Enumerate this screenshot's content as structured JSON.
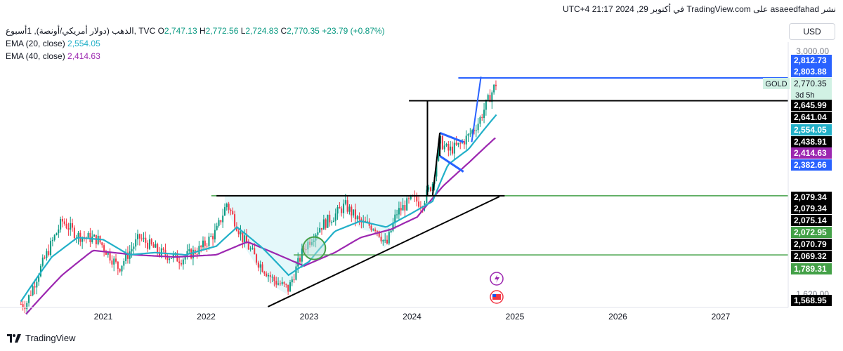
{
  "header": {
    "title_line": "نشر asaeedfahad على TradingView.com في أكتوبر 29, 2024 21:17 UTC+4"
  },
  "legend": {
    "symbol": "الذهب (دولار أمريكي/أونصة), 1أسبوع, TVC",
    "open_label": "O",
    "open": "2,747.13",
    "high_label": "H",
    "high": "2,772.56",
    "low_label": "L",
    "low": "2,724.83",
    "close_label": "C",
    "close": "2,770.35",
    "change": "+23.79 (+0.87%)",
    "ema20_label": "EMA (20, close)",
    "ema20": "2,554.05",
    "ema40_label": "EMA (40, close)",
    "ema40": "2,414.63"
  },
  "currency_button": "USD",
  "footer": {
    "brand": "TradingView"
  },
  "chart_data": {
    "type": "candlestick",
    "timeframe": "1W",
    "x_ticks": [
      "2021",
      "2022",
      "2023",
      "2024",
      "2025",
      "2026",
      "2027"
    ],
    "y_ticks": [
      "3,000.00",
      "1,620.00"
    ],
    "price_labels": [
      {
        "text": "2,812.73",
        "color": "#2962ff"
      },
      {
        "text": "2,803.88",
        "color": "#2962ff"
      },
      {
        "text": "2,770.35",
        "color": "#d1f1e4",
        "symbol": "GOLD",
        "countdown": "3d 5h"
      },
      {
        "text": "2,645.99",
        "color": "#000000"
      },
      {
        "text": "2,641.04",
        "color": "#000000"
      },
      {
        "text": "2,554.05",
        "color": "#22b0c8"
      },
      {
        "text": "2,438.91",
        "color": "#000000"
      },
      {
        "text": "2,414.63",
        "color": "#9c27b0"
      },
      {
        "text": "2,382.66",
        "color": "#2962ff"
      },
      {
        "text": "2,079.34",
        "color": "#000000"
      },
      {
        "text": "2,079.34",
        "color": "#000000"
      },
      {
        "text": "2,075.14",
        "color": "#000000"
      },
      {
        "text": "2,072.95",
        "color": "#43a047"
      },
      {
        "text": "2,070.79",
        "color": "#000000"
      },
      {
        "text": "2,069.32",
        "color": "#000000"
      },
      {
        "text": "1,789.31",
        "color": "#43a047"
      },
      {
        "text": "1,568.95",
        "color": "#000000"
      }
    ],
    "price_path": [
      [
        2020.25,
        1580
      ],
      [
        2020.4,
        1740
      ],
      [
        2020.6,
        1950
      ],
      [
        2020.75,
        1880
      ],
      [
        2020.95,
        1860
      ],
      [
        2021.15,
        1730
      ],
      [
        2021.35,
        1870
      ],
      [
        2021.55,
        1800
      ],
      [
        2021.75,
        1770
      ],
      [
        2021.95,
        1820
      ],
      [
        2022.1,
        1900
      ],
      [
        2022.2,
        2040
      ],
      [
        2022.35,
        1870
      ],
      [
        2022.5,
        1760
      ],
      [
        2022.65,
        1680
      ],
      [
        2022.8,
        1640
      ],
      [
        2022.95,
        1820
      ],
      [
        2023.1,
        1920
      ],
      [
        2023.25,
        1980
      ],
      [
        2023.35,
        2030
      ],
      [
        2023.5,
        1940
      ],
      [
        2023.65,
        1920
      ],
      [
        2023.75,
        1830
      ],
      [
        2023.85,
        1990
      ],
      [
        2024.0,
        2060
      ],
      [
        2024.1,
        2040
      ],
      [
        2024.2,
        2150
      ],
      [
        2024.27,
        2390
      ],
      [
        2024.35,
        2330
      ],
      [
        2024.45,
        2360
      ],
      [
        2024.55,
        2420
      ],
      [
        2024.65,
        2510
      ],
      [
        2024.72,
        2620
      ],
      [
        2024.82,
        2770
      ]
    ],
    "ema20_path": [
      [
        2020.2,
        1590
      ],
      [
        2020.5,
        1780
      ],
      [
        2020.75,
        1870
      ],
      [
        2021.0,
        1860
      ],
      [
        2021.25,
        1790
      ],
      [
        2021.5,
        1800
      ],
      [
        2021.8,
        1790
      ],
      [
        2022.1,
        1830
      ],
      [
        2022.3,
        1920
      ],
      [
        2022.55,
        1820
      ],
      [
        2022.8,
        1700
      ],
      [
        2023.0,
        1760
      ],
      [
        2023.25,
        1900
      ],
      [
        2023.5,
        1950
      ],
      [
        2023.75,
        1920
      ],
      [
        2024.0,
        1990
      ],
      [
        2024.2,
        2050
      ],
      [
        2024.35,
        2250
      ],
      [
        2024.55,
        2340
      ],
      [
        2024.82,
        2554
      ]
    ],
    "ema40_path": [
      [
        2020.25,
        1540
      ],
      [
        2020.6,
        1700
      ],
      [
        2020.9,
        1810
      ],
      [
        2021.3,
        1790
      ],
      [
        2021.7,
        1780
      ],
      [
        2022.1,
        1790
      ],
      [
        2022.4,
        1850
      ],
      [
        2022.7,
        1790
      ],
      [
        2022.95,
        1740
      ],
      [
        2023.25,
        1800
      ],
      [
        2023.5,
        1870
      ],
      [
        2023.8,
        1910
      ],
      [
        2024.05,
        1970
      ],
      [
        2024.3,
        2130
      ],
      [
        2024.55,
        2260
      ],
      [
        2024.82,
        2414
      ]
    ],
    "drawings": {
      "neckline_price": 2079.34,
      "neckline_x": [
        2022.1,
        2024.9
      ],
      "target_line_price": 2645.99,
      "target_line_x": [
        2023.97,
        2025.0
      ],
      "breakout_high_price": 2803.88,
      "breakout_high_x": [
        2024.45,
        2025.0
      ],
      "green_upper_price": 2072.95,
      "green_lower_price": 1789.31,
      "trendline": [
        [
          2022.6,
          1568.95
        ],
        [
          2024.85,
          2075.14
        ]
      ],
      "flag_upper": [
        [
          2024.27,
          2438.91
        ],
        [
          2024.5,
          2382.66
        ]
      ],
      "flag_lower": [
        [
          2024.27,
          2300
        ],
        [
          2024.5,
          2210
        ]
      ],
      "pole": [
        [
          2024.2,
          2079.34
        ],
        [
          2024.27,
          2438.91
        ]
      ],
      "blue_arrow": [
        [
          2024.58,
          2382.66
        ],
        [
          2024.67,
          2812.73
        ]
      ]
    }
  }
}
